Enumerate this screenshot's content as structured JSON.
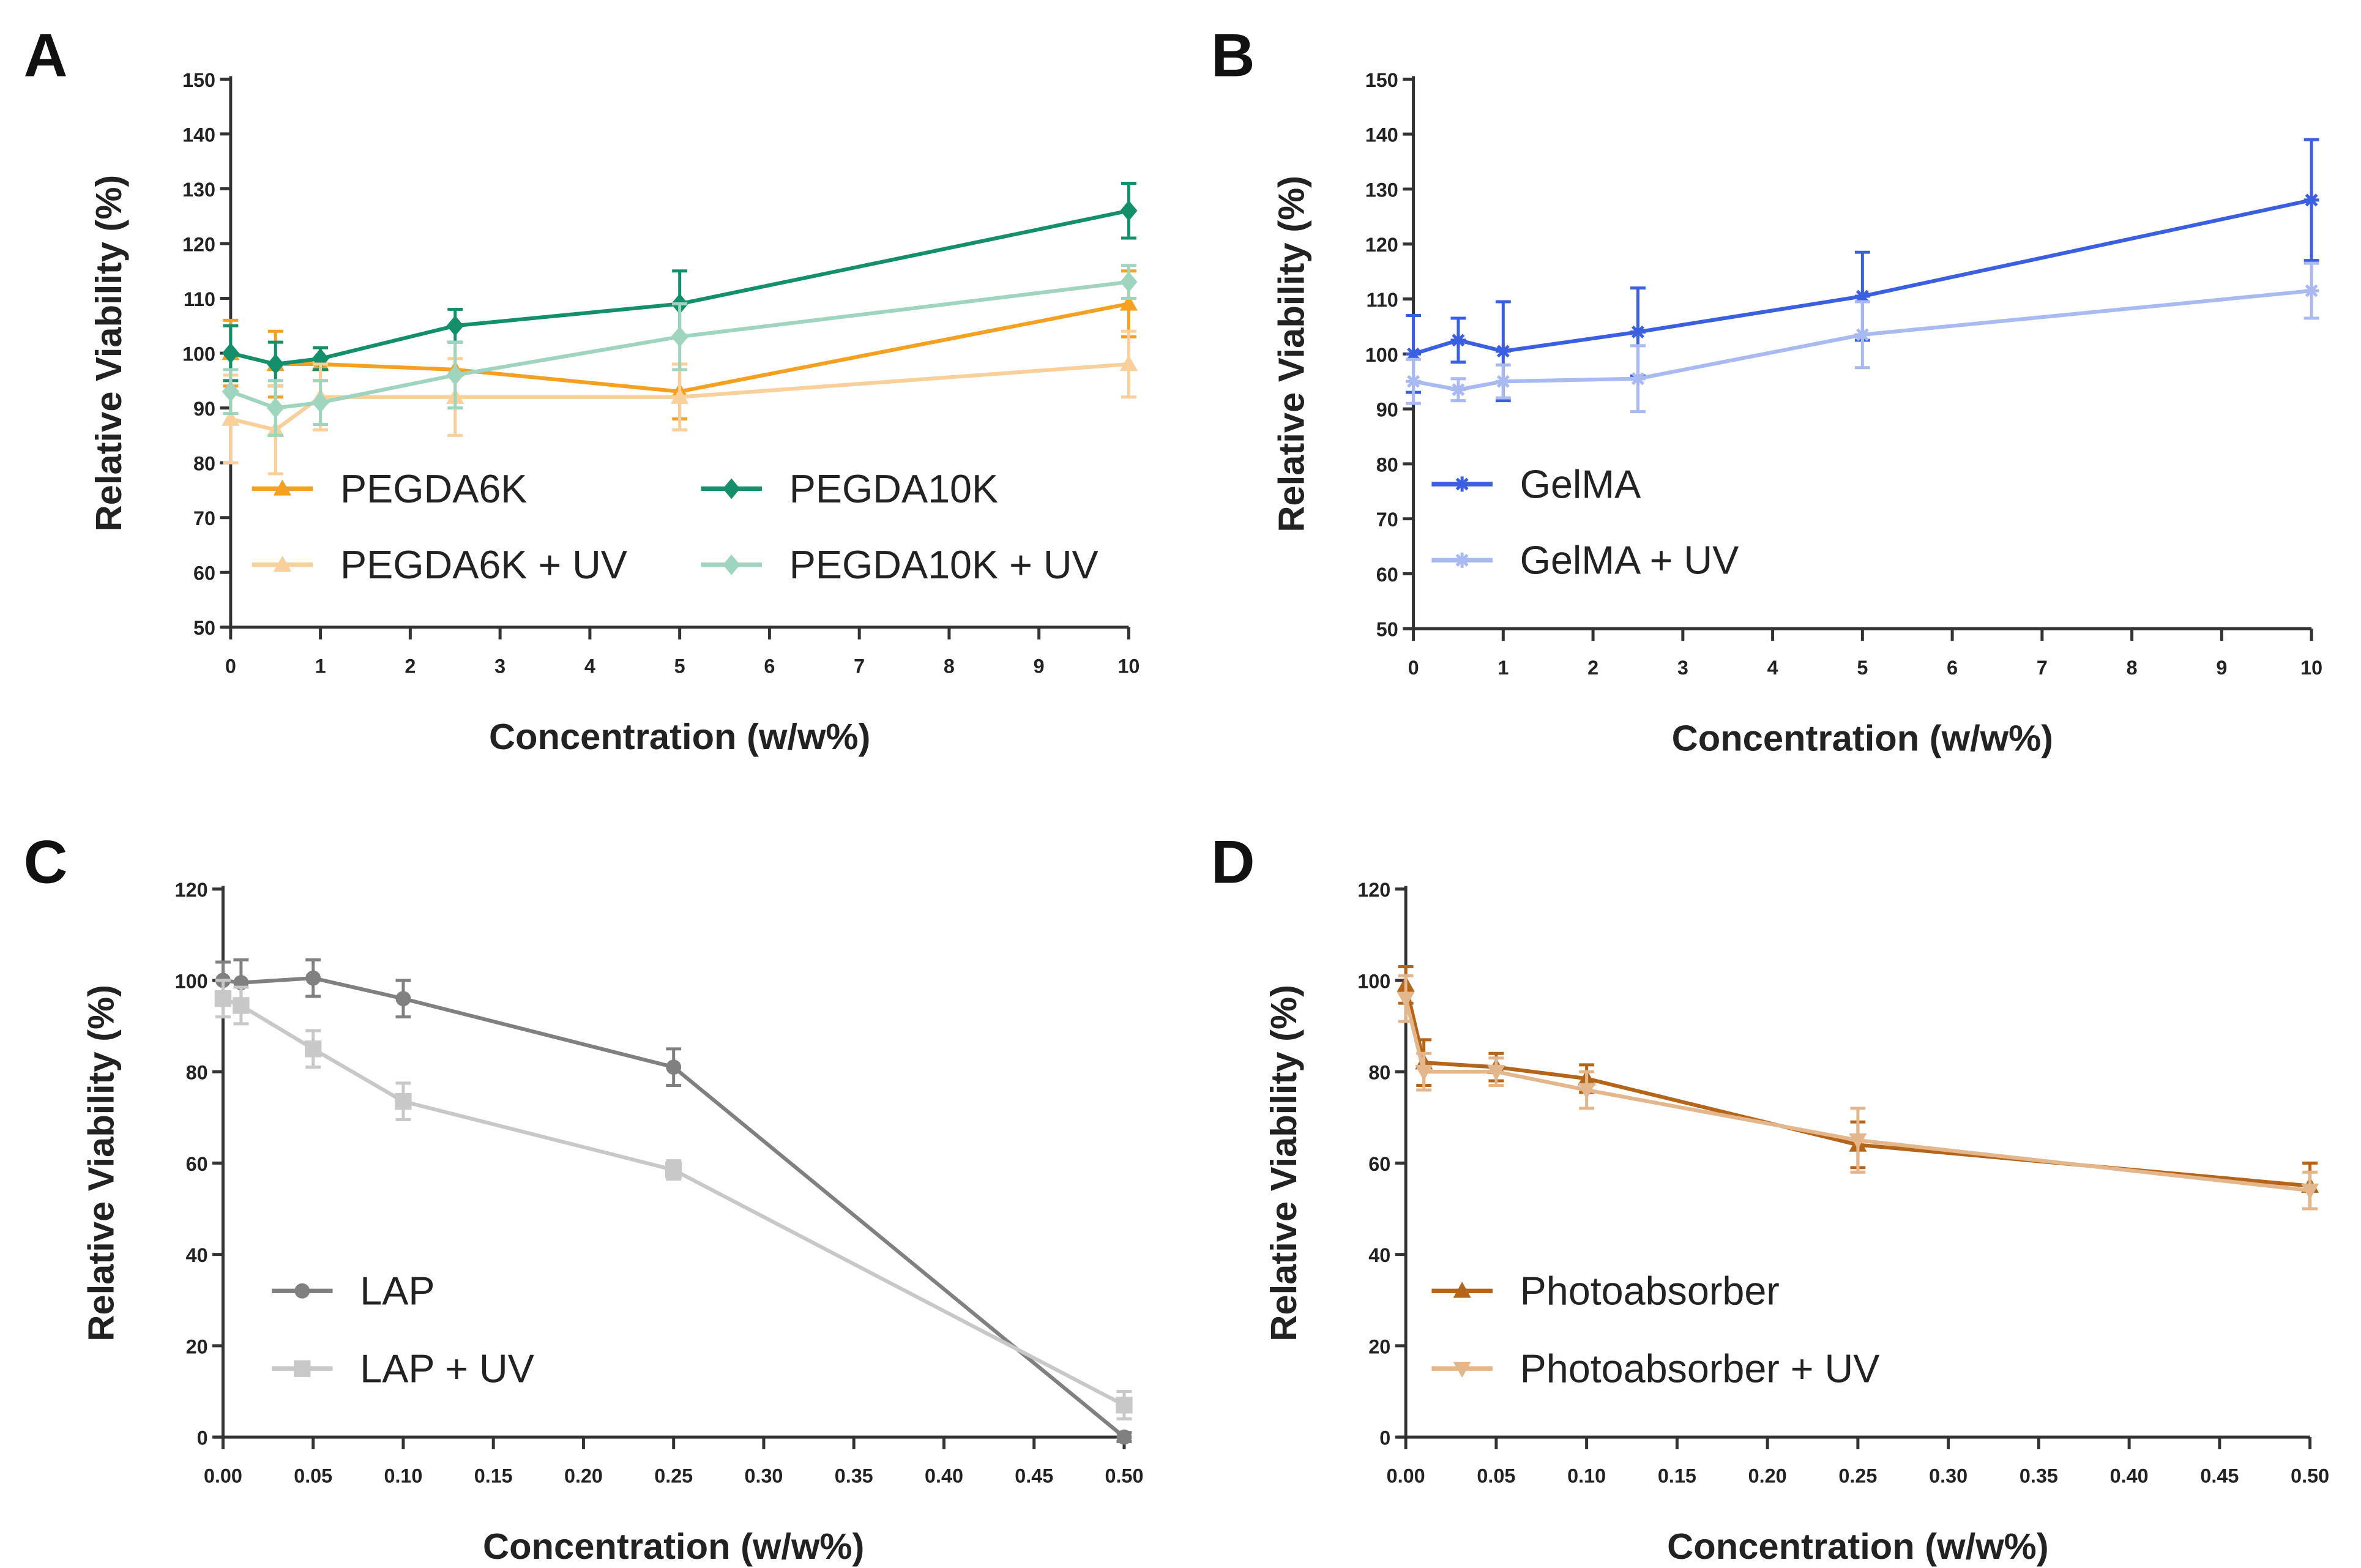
{
  "chart_data": [
    {
      "panel": "A",
      "type": "line",
      "xlabel": "Concentration (w/w%)",
      "ylabel": "Relative Viability (%)",
      "xlim": [
        0,
        10
      ],
      "ylim": [
        50,
        150
      ],
      "xticks": [
        "0",
        "1",
        "2",
        "3",
        "4",
        "5",
        "6",
        "7",
        "8",
        "9",
        "10"
      ],
      "yticks": [
        "50",
        "60",
        "70",
        "80",
        "90",
        "100",
        "110",
        "120",
        "130",
        "140",
        "150"
      ],
      "legend": "bottom-left, 2 columns",
      "series": [
        {
          "name": "PEGDA6K",
          "color": "#f5a020",
          "marker": "triangle",
          "x": [
            0,
            0.5,
            1,
            2.5,
            5,
            10
          ],
          "y": [
            100,
            98,
            98,
            97,
            93,
            109
          ],
          "err": [
            6,
            6,
            3,
            5,
            5,
            6
          ]
        },
        {
          "name": "PEGDA10K",
          "color": "#138f6c",
          "marker": "diamond",
          "x": [
            0,
            0.5,
            1,
            2.5,
            5,
            10
          ],
          "y": [
            100,
            98,
            99,
            105,
            109,
            126
          ],
          "err": [
            5,
            4,
            2,
            3,
            6,
            5
          ]
        },
        {
          "name": "PEGDA6K + UV",
          "color": "#f9cf9a",
          "marker": "triangle",
          "x": [
            0,
            0.5,
            1,
            2.5,
            5,
            10
          ],
          "y": [
            88,
            86,
            92,
            92,
            92,
            98
          ],
          "err": [
            8,
            8,
            6,
            7,
            6,
            6
          ]
        },
        {
          "name": "PEGDA10K + UV",
          "color": "#9fd4bf",
          "marker": "diamond",
          "x": [
            0,
            0.5,
            1,
            2.5,
            5,
            10
          ],
          "y": [
            93,
            90,
            91,
            96,
            103,
            113
          ],
          "err": [
            4,
            5,
            4,
            6,
            6,
            3
          ]
        }
      ]
    },
    {
      "panel": "B",
      "type": "line",
      "xlabel": "Concentration (w/w%)",
      "ylabel": "Relative Viability (%)",
      "xlim": [
        0,
        10
      ],
      "ylim": [
        50,
        150
      ],
      "xticks": [
        "0",
        "1",
        "2",
        "3",
        "4",
        "5",
        "6",
        "7",
        "8",
        "9",
        "10"
      ],
      "yticks": [
        "50",
        "60",
        "70",
        "80",
        "90",
        "100",
        "110",
        "120",
        "130",
        "140",
        "150"
      ],
      "legend": "bottom-left",
      "series": [
        {
          "name": "GelMA",
          "color": "#3a5fe0",
          "marker": "star",
          "x": [
            0,
            0.5,
            1,
            2.5,
            5,
            10
          ],
          "y": [
            100,
            102.5,
            100.5,
            104,
            110.5,
            128
          ],
          "err": [
            7,
            4,
            9,
            8,
            8,
            11
          ]
        },
        {
          "name": "GelMA + UV",
          "color": "#a9b9f2",
          "marker": "star",
          "x": [
            0,
            0.5,
            1,
            2.5,
            5,
            10
          ],
          "y": [
            95,
            93.5,
            95,
            95.5,
            103.5,
            111.5
          ],
          "err": [
            4,
            2,
            3,
            6,
            6,
            5
          ]
        }
      ]
    },
    {
      "panel": "C",
      "type": "line",
      "xlabel": "Concentration (w/w%)",
      "ylabel": "Relative Viability (%)",
      "xlim": [
        0,
        0.5
      ],
      "ylim": [
        0,
        120
      ],
      "xticks": [
        "0.00",
        "0.05",
        "0.10",
        "0.15",
        "0.20",
        "0.25",
        "0.30",
        "0.35",
        "0.40",
        "0.45",
        "0.50"
      ],
      "yticks": [
        "0",
        "20",
        "40",
        "60",
        "80",
        "100",
        "120"
      ],
      "legend": "bottom-left",
      "series": [
        {
          "name": "LAP",
          "color": "#808080",
          "marker": "circle",
          "x": [
            0,
            0.01,
            0.05,
            0.1,
            0.25,
            0.5
          ],
          "y": [
            100,
            99.5,
            100.5,
            96,
            81,
            0
          ],
          "err": [
            4,
            5,
            4,
            4,
            4,
            1
          ]
        },
        {
          "name": "LAP + UV",
          "color": "#c8c8c8",
          "marker": "square",
          "x": [
            0,
            0.01,
            0.05,
            0.1,
            0.25,
            0.5
          ],
          "y": [
            96,
            94.5,
            85,
            73.5,
            58.5,
            7
          ],
          "err": [
            4,
            4,
            4,
            4,
            2,
            3
          ]
        }
      ]
    },
    {
      "panel": "D",
      "type": "line",
      "xlabel": "Concentration (w/w%)",
      "ylabel": "Relative Viability (%)",
      "xlim": [
        0,
        0.5
      ],
      "ylim": [
        0,
        120
      ],
      "xticks": [
        "0.00",
        "0.05",
        "0.10",
        "0.15",
        "0.20",
        "0.25",
        "0.30",
        "0.35",
        "0.40",
        "0.45",
        "0.50"
      ],
      "yticks": [
        "0",
        "20",
        "40",
        "60",
        "80",
        "100",
        "120"
      ],
      "legend": "bottom-left",
      "series": [
        {
          "name": "Photoabsorber",
          "color": "#b5651a",
          "marker": "triangle",
          "x": [
            0,
            0.01,
            0.05,
            0.1,
            0.25,
            0.5
          ],
          "y": [
            99,
            82,
            81,
            78.5,
            64,
            55
          ],
          "err": [
            4,
            5,
            3,
            3,
            5,
            5
          ]
        },
        {
          "name": "Photoabsorber + UV",
          "color": "#e4b68c",
          "marker": "triangle-down",
          "x": [
            0,
            0.01,
            0.05,
            0.1,
            0.25,
            0.5
          ],
          "y": [
            96,
            80,
            80,
            76,
            65,
            54
          ],
          "err": [
            5,
            4,
            3,
            4,
            7,
            4
          ]
        }
      ]
    }
  ]
}
